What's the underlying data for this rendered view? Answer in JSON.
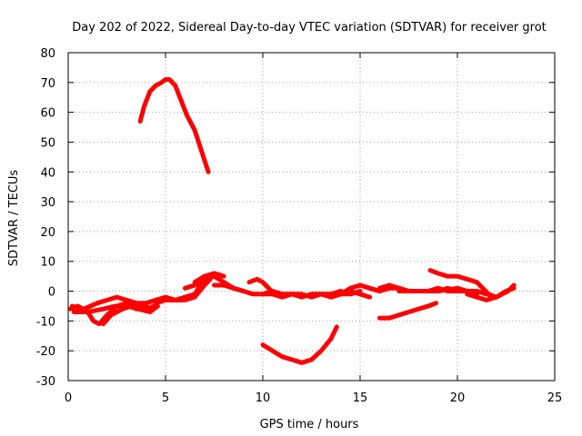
{
  "chart_data": {
    "type": "line",
    "title": "Day 202 of 2022, Sidereal Day-to-day VTEC variation (SDTVAR) for receiver grot",
    "xlabel": "GPS time / hours",
    "ylabel": "SDTVAR / TECUs",
    "xlim": [
      0,
      25
    ],
    "ylim": [
      -30,
      80
    ],
    "xticks": [
      0,
      5,
      10,
      15,
      20,
      25
    ],
    "yticks": [
      -30,
      -20,
      -10,
      0,
      10,
      20,
      30,
      40,
      50,
      60,
      70,
      80
    ],
    "grid": true,
    "legend": "none",
    "line_color": "#ff0000",
    "series": [
      {
        "name": "track-1",
        "x": [
          0.1,
          0.5,
          1.0,
          1.3,
          1.6,
          2.0,
          2.5,
          3.0,
          3.5,
          4.0,
          4.4
        ],
        "y": [
          -6,
          -5,
          -7,
          -10,
          -11,
          -8,
          -5,
          -4,
          -5,
          -6,
          -5
        ]
      },
      {
        "name": "track-2",
        "x": [
          0.2,
          0.8,
          1.5,
          2.0,
          2.5,
          3.0,
          3.5,
          4.0,
          4.2
        ],
        "y": [
          -5,
          -6,
          -4,
          -3,
          -2,
          -3,
          -4,
          -5,
          -6
        ]
      },
      {
        "name": "track-3",
        "x": [
          0.3,
          1.0,
          1.8,
          2.4,
          3.0,
          3.6,
          4.2,
          4.6
        ],
        "y": [
          -7,
          -7,
          -6,
          -5,
          -5,
          -6,
          -7,
          -5
        ]
      },
      {
        "name": "track-4",
        "x": [
          1.8,
          2.2,
          2.8,
          3.2,
          3.6,
          4.0
        ],
        "y": [
          -11,
          -8,
          -6,
          -5,
          -4,
          -4
        ]
      },
      {
        "name": "track-5",
        "x": [
          3.5,
          4.0,
          4.5,
          5.0,
          5.5,
          6.0,
          6.5,
          7.0,
          7.3
        ],
        "y": [
          -6,
          -4,
          -3,
          -2,
          -3,
          -2,
          -1,
          4,
          5
        ]
      },
      {
        "name": "track-6",
        "x": [
          4.5,
          5.0,
          5.5,
          6.0,
          6.5,
          7.0,
          7.3
        ],
        "y": [
          -4,
          -3,
          -3,
          -3,
          -2,
          2,
          4
        ]
      },
      {
        "name": "track-7",
        "x": [
          6.0,
          6.5,
          7.0,
          7.5,
          8.0,
          8.5,
          9.0,
          9.5,
          10.0
        ],
        "y": [
          1,
          2,
          4,
          5,
          3,
          1,
          0,
          -1,
          -1
        ]
      },
      {
        "name": "track-8",
        "x": [
          6.5,
          7.0,
          7.5,
          8.0
        ],
        "y": [
          3,
          5,
          6,
          5
        ]
      },
      {
        "name": "track-9",
        "x": [
          7.5,
          8.0,
          8.5,
          9.0
        ],
        "y": [
          2,
          2,
          1,
          0
        ]
      },
      {
        "name": "track-10",
        "x": [
          9.3,
          9.7,
          10.0,
          10.3,
          10.6
        ],
        "y": [
          3,
          4,
          3,
          1,
          -1
        ]
      },
      {
        "name": "track-11",
        "x": [
          10.0,
          10.5,
          11.0,
          11.5,
          12.0,
          12.5,
          13.0,
          13.5,
          14.0,
          14.5
        ],
        "y": [
          -1,
          -1,
          -2,
          -1,
          -1,
          -2,
          -1,
          -2,
          -1,
          -1
        ]
      },
      {
        "name": "track-12",
        "x": [
          10.0,
          10.5,
          11.0,
          11.5,
          12.0,
          12.5,
          13.0,
          13.5,
          14.0,
          14.5,
          15.0
        ],
        "y": [
          -1,
          0,
          -1,
          -1,
          -2,
          -1,
          -1,
          -1,
          0,
          -1,
          0
        ]
      },
      {
        "name": "track-13",
        "x": [
          13.5,
          14.0,
          14.5,
          15.0,
          15.5
        ],
        "y": [
          -2,
          -1,
          0,
          -1,
          -2
        ]
      },
      {
        "name": "track-14",
        "x": [
          14.0,
          14.5,
          15.0,
          15.5,
          16.0
        ],
        "y": [
          -1,
          1,
          2,
          1,
          0
        ]
      },
      {
        "name": "track-15",
        "x": [
          15.0,
          15.5,
          16.0,
          16.5,
          17.0,
          17.5,
          18.0,
          18.5,
          19.0,
          19.5,
          20.0
        ],
        "y": [
          2,
          1,
          0,
          1,
          1,
          0,
          0,
          0,
          0,
          1,
          0
        ]
      },
      {
        "name": "track-16",
        "x": [
          16.0,
          16.5,
          17.0,
          17.5,
          18.0,
          18.5,
          19.0,
          19.5,
          20.0,
          20.5,
          21.0
        ],
        "y": [
          1,
          2,
          1,
          0,
          0,
          0,
          1,
          0,
          0,
          0,
          -1
        ]
      },
      {
        "name": "track-17",
        "x": [
          17.0,
          18.0,
          19.0,
          20.0,
          20.5,
          21.0,
          21.5,
          22.0
        ],
        "y": [
          0,
          0,
          0,
          1,
          0,
          0,
          -1,
          -2
        ]
      },
      {
        "name": "track-18",
        "x": [
          18.6,
          19.0,
          19.5,
          20.0,
          20.5,
          21.0,
          21.3,
          21.6,
          22.0,
          22.3,
          22.6,
          22.9
        ],
        "y": [
          7,
          6,
          5,
          5,
          4,
          3,
          1,
          -1,
          -2,
          -1,
          0,
          2
        ]
      },
      {
        "name": "track-19",
        "x": [
          20.5,
          21.0,
          21.5,
          22.0,
          22.5,
          22.9
        ],
        "y": [
          -1,
          -2,
          -3,
          -2,
          0,
          1
        ]
      },
      {
        "name": "track-20",
        "x": [
          16.0,
          16.5,
          17.0,
          17.5,
          18.0,
          18.5,
          18.9
        ],
        "y": [
          -9,
          -9,
          -8,
          -7,
          -6,
          -5,
          -4
        ]
      },
      {
        "name": "track-21",
        "x": [
          3.7,
          3.9,
          4.2,
          4.5,
          4.8,
          5.0,
          5.2,
          5.5,
          5.8,
          6.1,
          6.5,
          6.8,
          7.0,
          7.2
        ],
        "y": [
          57,
          62,
          67,
          69,
          70,
          71,
          71,
          69,
          64,
          59,
          54,
          48,
          44,
          40
        ]
      },
      {
        "name": "track-22",
        "x": [
          10.0,
          10.5,
          11.0,
          11.5,
          12.0,
          12.5,
          13.0,
          13.5,
          13.8
        ],
        "y": [
          -18,
          -20,
          -22,
          -23,
          -24,
          -23,
          -20,
          -16,
          -12
        ]
      }
    ]
  }
}
